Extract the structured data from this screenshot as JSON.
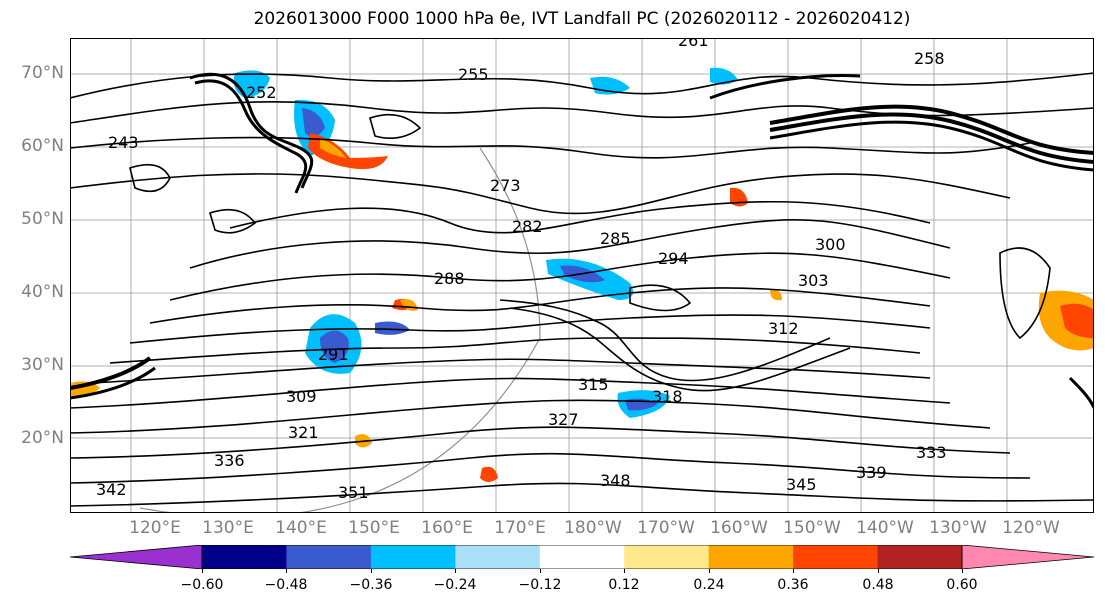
{
  "title": "2026013000 F000 1000 hPa θe, IVT Landfall PC (2026020112 - 2026020412)",
  "lat_labels": [
    "70°N",
    "60°N",
    "50°N",
    "40°N",
    "30°N",
    "20°N"
  ],
  "lon_labels": [
    "120°E",
    "130°E",
    "140°E",
    "150°E",
    "160°E",
    "170°E",
    "180°W",
    "170°W",
    "160°W",
    "150°W",
    "140°W",
    "130°W",
    "120°W"
  ],
  "contour_labels": [
    "261",
    "258",
    "255",
    "252",
    "273",
    "282",
    "285",
    "294",
    "300",
    "303",
    "312",
    "288",
    "291",
    "309",
    "315",
    "318",
    "327",
    "333",
    "339",
    "342",
    "345",
    "348",
    "351",
    "321",
    "336",
    "243"
  ],
  "colorbar": {
    "colors": [
      "#9b30d0",
      "#00008b",
      "#3a5bd0",
      "#00bfff",
      "#a9dff7",
      "#ffffff",
      "#ffe98a",
      "#ffa500",
      "#ff4500",
      "#b22222",
      "#ff87b0"
    ],
    "ticks": [
      "−0.60",
      "−0.48",
      "−0.36",
      "−0.24",
      "−0.12",
      "0.12",
      "0.24",
      "0.36",
      "0.48",
      "0.60"
    ]
  }
}
